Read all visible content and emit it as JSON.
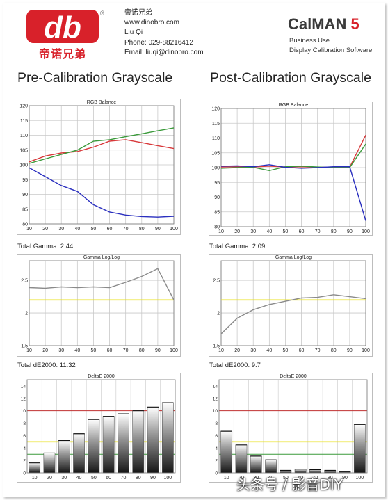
{
  "header": {
    "logo_text": "db",
    "logo_cn": "帝诺兄弟",
    "registered": "®",
    "contact": {
      "company": "帝诺兄弟",
      "website": "www.dinobro.com",
      "name": "Liu Qi",
      "phone": "Phone: 029-88216412",
      "email": "Email: liuqi@dinobro.com"
    },
    "brand": {
      "name": "CalMAN",
      "version": "5",
      "line1": "Business Use",
      "line2": "Display Calibration Software"
    }
  },
  "pre": {
    "title": "Pre-Calibration Grayscale",
    "gamma_label": "Total Gamma: 2.44",
    "de_label": "Total dE2000: 11.32"
  },
  "post": {
    "title": "Post-Calibration Grayscale",
    "gamma_label": "Total Gamma: 2.09",
    "de_label": "Total dE2000: 9.7"
  },
  "watermark": "头条号 / 影音DIY",
  "colors": {
    "red": "#d8383a",
    "green": "#3a9a3a",
    "blue": "#2a2fbf",
    "gray": "#8a8a8a",
    "yellow": "#e8e020",
    "darkred": "#c03030"
  },
  "chart_data": [
    {
      "id": "pre_rgb",
      "type": "line",
      "title": "RGB Balance",
      "x": [
        10,
        20,
        30,
        40,
        50,
        60,
        70,
        80,
        90,
        100
      ],
      "ylim": [
        80,
        120
      ],
      "yticks": [
        80,
        85,
        90,
        95,
        100,
        105,
        110,
        115,
        120
      ],
      "series": [
        {
          "color": "red",
          "values": [
            101,
            103,
            104,
            104.5,
            106,
            108,
            108.5,
            107.5,
            106.5,
            105.5
          ]
        },
        {
          "color": "green",
          "values": [
            100.5,
            102,
            103.5,
            105,
            108,
            108.5,
            109.5,
            110.5,
            111.5,
            112.5
          ]
        },
        {
          "color": "blue",
          "values": [
            99,
            96,
            93,
            91,
            86.5,
            84,
            83,
            82.5,
            82.3,
            82.6
          ]
        }
      ]
    },
    {
      "id": "post_rgb",
      "type": "line",
      "title": "RGB Balance",
      "x": [
        10,
        20,
        30,
        40,
        50,
        60,
        70,
        80,
        90,
        100
      ],
      "ylim": [
        80,
        120
      ],
      "yticks": [
        80,
        85,
        90,
        95,
        100,
        105,
        110,
        115,
        120
      ],
      "series": [
        {
          "color": "red",
          "values": [
            100.2,
            100.3,
            100.2,
            100.5,
            100.2,
            100.3,
            100.1,
            100.2,
            100.1,
            111
          ]
        },
        {
          "color": "green",
          "values": [
            99.8,
            100,
            100.1,
            99,
            100.3,
            100.5,
            100.2,
            100,
            100,
            108
          ]
        },
        {
          "color": "blue",
          "values": [
            100.5,
            100.6,
            100.3,
            101,
            100.1,
            99.8,
            100,
            100.3,
            100.3,
            82
          ]
        }
      ]
    },
    {
      "id": "pre_gamma",
      "type": "line",
      "title": "Gamma Log/Log",
      "x": [
        10,
        20,
        30,
        40,
        50,
        60,
        70,
        80,
        90,
        100
      ],
      "ylim": [
        1.5,
        2.8
      ],
      "yticks": [
        1.5,
        2,
        2.5
      ],
      "target": 2.2,
      "series": [
        {
          "color": "gray",
          "values": [
            2.39,
            2.38,
            2.4,
            2.39,
            2.4,
            2.39,
            2.47,
            2.56,
            2.68,
            2.2
          ]
        }
      ]
    },
    {
      "id": "post_gamma",
      "type": "line",
      "title": "Gamma Log/Log",
      "x": [
        10,
        20,
        30,
        40,
        50,
        60,
        70,
        80,
        90,
        100
      ],
      "ylim": [
        1.5,
        2.8
      ],
      "yticks": [
        1.5,
        2,
        2.5
      ],
      "target": 2.2,
      "series": [
        {
          "color": "gray",
          "values": [
            1.68,
            1.92,
            2.05,
            2.13,
            2.18,
            2.23,
            2.24,
            2.28,
            2.25,
            2.22
          ]
        }
      ]
    },
    {
      "id": "pre_de",
      "type": "bar",
      "title": "DeltaE 2000",
      "categories": [
        "10",
        "20",
        "30",
        "40",
        "50",
        "60",
        "70",
        "80",
        "90",
        "100"
      ],
      "ylim": [
        0,
        15
      ],
      "yticks": [
        0,
        1,
        2,
        3,
        4,
        5,
        6,
        7,
        8,
        9,
        10,
        11,
        12,
        13,
        14
      ],
      "values": [
        1.6,
        3.2,
        5.2,
        6.3,
        8.6,
        9.1,
        9.5,
        10,
        10.6,
        11.3
      ]
    },
    {
      "id": "post_de",
      "type": "bar",
      "title": "DeltaE 2000",
      "categories": [
        "10",
        "20",
        "30",
        "40",
        "50",
        "60",
        "70",
        "80",
        "90",
        "100"
      ],
      "ylim": [
        0,
        15
      ],
      "yticks": [
        0,
        1,
        2,
        3,
        4,
        5,
        6,
        7,
        8,
        9,
        10,
        11,
        12,
        13,
        14
      ],
      "values": [
        6.7,
        4.5,
        2.7,
        2.1,
        0.4,
        0.6,
        0.5,
        0.4,
        0.2,
        7.8
      ]
    }
  ]
}
